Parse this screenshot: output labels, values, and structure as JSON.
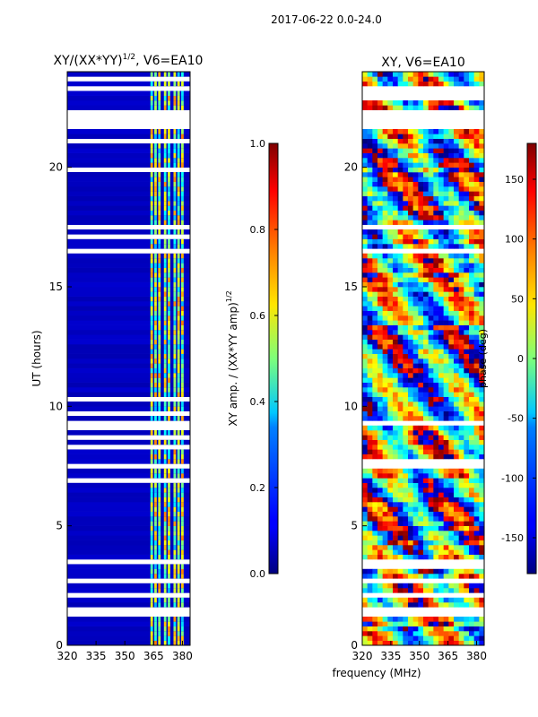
{
  "figure": {
    "suptitle": "2017-06-22 0.0-24.0"
  },
  "chart_data": [
    {
      "type": "heatmap",
      "title_main": "XY/(XX*YY)",
      "title_exp": "1/2",
      "title_suffix": ", V6=EA10",
      "xlabel": "",
      "ylabel": "UT (hours)",
      "xlim": [
        320,
        384
      ],
      "ylim": [
        0,
        24
      ],
      "xticks": [
        320,
        335,
        350,
        365,
        380
      ],
      "yticks": [
        0,
        5,
        10,
        15,
        20
      ],
      "colormap": "jet",
      "colorbar": {
        "label_main": "XY amp. / (XX*YY amp)",
        "label_exp": "1/2",
        "min": 0.0,
        "max": 1.0,
        "ticks": [
          "0.0",
          "0.2",
          "0.4",
          "0.6",
          "0.8",
          "1.0"
        ]
      },
      "description_values": {
        "background_level": 0.05,
        "band_channels_mhz": [
          364,
          366,
          368,
          371,
          373,
          376,
          378,
          380
        ],
        "band_level_range": [
          0.3,
          0.7
        ]
      }
    },
    {
      "type": "heatmap",
      "title_main": "XY, V6=EA10",
      "xlabel": "frequency (MHz)",
      "ylabel": "",
      "xlim": [
        320,
        384
      ],
      "ylim": [
        0,
        24
      ],
      "xticks": [
        320,
        335,
        350,
        365,
        380
      ],
      "yticks": [
        0,
        5,
        10,
        15,
        20
      ],
      "colormap": "jet",
      "colorbar": {
        "label_main": "phase (deg)",
        "min": -180,
        "max": 180,
        "ticks": [
          "-150",
          "-100",
          "-50",
          "0",
          "50",
          "100",
          "150"
        ]
      }
    }
  ],
  "flag_gaps_hours": [
    [
      21.6,
      22.4
    ],
    [
      17.4,
      17.6
    ],
    [
      16.5,
      16.62
    ],
    [
      14.6,
      14.7
    ],
    [
      11.0,
      11.07
    ],
    [
      9.3,
      9.38
    ],
    [
      8.55,
      8.62
    ],
    [
      7.5,
      7.56
    ],
    [
      3.95,
      4.05
    ],
    [
      3.45,
      3.55
    ],
    [
      2.55,
      2.75
    ],
    [
      2.1,
      2.18
    ],
    [
      1.3,
      1.5
    ],
    [
      0.95,
      1.05
    ],
    [
      0.52,
      0.6
    ]
  ],
  "colors": {
    "background": "#ffffff",
    "axis": "#000000"
  }
}
